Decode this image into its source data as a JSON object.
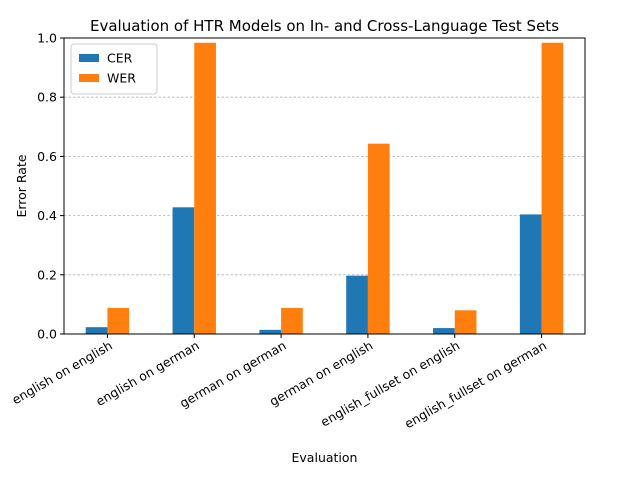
{
  "chart_data": {
    "type": "bar",
    "title": "Evaluation of HTR Models on In- and Cross-Language Test Sets",
    "xlabel": "Evaluation",
    "ylabel": "Error Rate",
    "ylim": [
      0,
      1.0
    ],
    "yticks": [
      "0.0",
      "0.2",
      "0.4",
      "0.6",
      "0.8",
      "1.0"
    ],
    "grid": "horizontal dashed",
    "legend_position": "top-left",
    "categories": [
      "english on english",
      "english on german",
      "german on german",
      "german on english",
      "english_fullset on english",
      "english_fullset on german"
    ],
    "series": [
      {
        "name": "CER",
        "color": "#1f77b4",
        "values": [
          0.023,
          0.428,
          0.014,
          0.197,
          0.02,
          0.404
        ]
      },
      {
        "name": "WER",
        "color": "#ff7f0e",
        "values": [
          0.088,
          0.984,
          0.088,
          0.643,
          0.08,
          0.984
        ]
      }
    ]
  }
}
